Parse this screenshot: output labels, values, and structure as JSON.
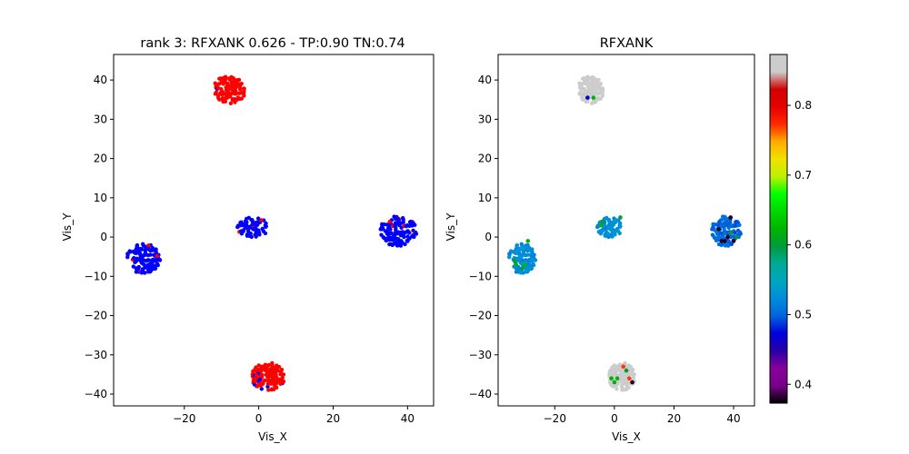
{
  "chart_data": [
    {
      "type": "scatter",
      "title": "rank 3: RFXANK 0.626 - TP:0.90 TN:0.74",
      "xlabel": "Vis_X",
      "ylabel": "Vis_Y",
      "xlim": [
        -39,
        47
      ],
      "ylim": [
        -43,
        46.5
      ],
      "xticks": [
        -20,
        0,
        20,
        40
      ],
      "yticks": [
        -40,
        -30,
        -20,
        -10,
        0,
        10,
        20,
        30,
        40
      ],
      "colors": {
        "positive": "#ff0000",
        "negative": "#0000ff"
      },
      "clusters": [
        {
          "center": [
            -8,
            37.5
          ],
          "radius": [
            4.5,
            3.5
          ],
          "count": 110,
          "majority": "positive",
          "minority_fraction": 0.04
        },
        {
          "center": [
            -31,
            -5.5
          ],
          "radius": [
            4.5,
            3.8
          ],
          "count": 120,
          "majority": "negative",
          "minority_fraction": 0.03
        },
        {
          "center": [
            -1.5,
            2.5
          ],
          "radius": [
            4.2,
            2.5
          ],
          "count": 80,
          "majority": "negative",
          "minority_fraction": 0.04
        },
        {
          "center": [
            37.5,
            1.5
          ],
          "radius": [
            5,
            3.8
          ],
          "count": 120,
          "majority": "negative",
          "minority_fraction": 0.03
        },
        {
          "center": [
            2.5,
            -35.5
          ],
          "radius": [
            4.5,
            3.5
          ],
          "count": 130,
          "majority": "positive",
          "minority_fraction": 0.1
        }
      ]
    },
    {
      "type": "scatter",
      "title": "RFXANK",
      "xlabel": "Vis_X",
      "ylabel": "Vis_Y",
      "xlim": [
        -39,
        47
      ],
      "ylim": [
        -43,
        46.5
      ],
      "xticks": [
        -20,
        0,
        20,
        40
      ],
      "yticks": [
        -40,
        -30,
        -20,
        -10,
        0,
        10,
        20,
        30,
        40
      ],
      "colormap": "nipy_spectral",
      "colorbar": {
        "range": [
          0.373,
          0.873
        ],
        "ticks": [
          0.4,
          0.5,
          0.6,
          0.7,
          0.8
        ]
      },
      "clusters": [
        {
          "center": [
            -8,
            37.5
          ],
          "radius": [
            4.5,
            3.5
          ],
          "count": 110,
          "base_value": 0.87,
          "outliers": [
            [
              -7,
              35.5,
              0.62
            ],
            [
              -9,
              35.5,
              0.47
            ]
          ]
        },
        {
          "center": [
            -31,
            -5.5
          ],
          "radius": [
            4.5,
            3.8
          ],
          "count": 120,
          "base_value": 0.525,
          "outliers": [
            [
              -33,
              -7,
              0.62
            ],
            [
              -31,
              -8,
              0.6
            ],
            [
              -30,
              -7,
              0.62
            ],
            [
              -29,
              -1,
              0.62
            ],
            [
              -33.5,
              -6,
              0.6
            ]
          ]
        },
        {
          "center": [
            -1.5,
            2.5
          ],
          "radius": [
            4.2,
            2.5
          ],
          "count": 80,
          "base_value": 0.525,
          "outliers": [
            [
              -4.5,
              3,
              0.62
            ],
            [
              -4,
              4,
              0.6
            ],
            [
              2,
              5,
              0.6
            ]
          ]
        },
        {
          "center": [
            37.5,
            1.5
          ],
          "radius": [
            5,
            3.8
          ],
          "count": 120,
          "base_value": 0.5,
          "outliers": [
            [
              37,
              -1,
              0.38
            ],
            [
              38,
              0,
              0.38
            ],
            [
              39,
              5,
              0.38
            ],
            [
              35,
              2,
              0.38
            ],
            [
              40,
              -1,
              0.38
            ],
            [
              41,
              0,
              0.6
            ],
            [
              39,
              1,
              0.6
            ],
            [
              36,
              -1,
              0.38
            ]
          ]
        },
        {
          "center": [
            2.5,
            -35.5
          ],
          "radius": [
            4.5,
            3.5
          ],
          "count": 130,
          "base_value": 0.873,
          "outliers": [
            [
              3,
              -33,
              0.77
            ],
            [
              1,
              -36,
              0.62
            ],
            [
              0,
              -37,
              0.62
            ],
            [
              4,
              -34,
              0.6
            ],
            [
              5,
              -36,
              0.77
            ],
            [
              6,
              -37,
              0.38
            ],
            [
              -1,
              -36,
              0.62
            ]
          ]
        }
      ]
    }
  ]
}
